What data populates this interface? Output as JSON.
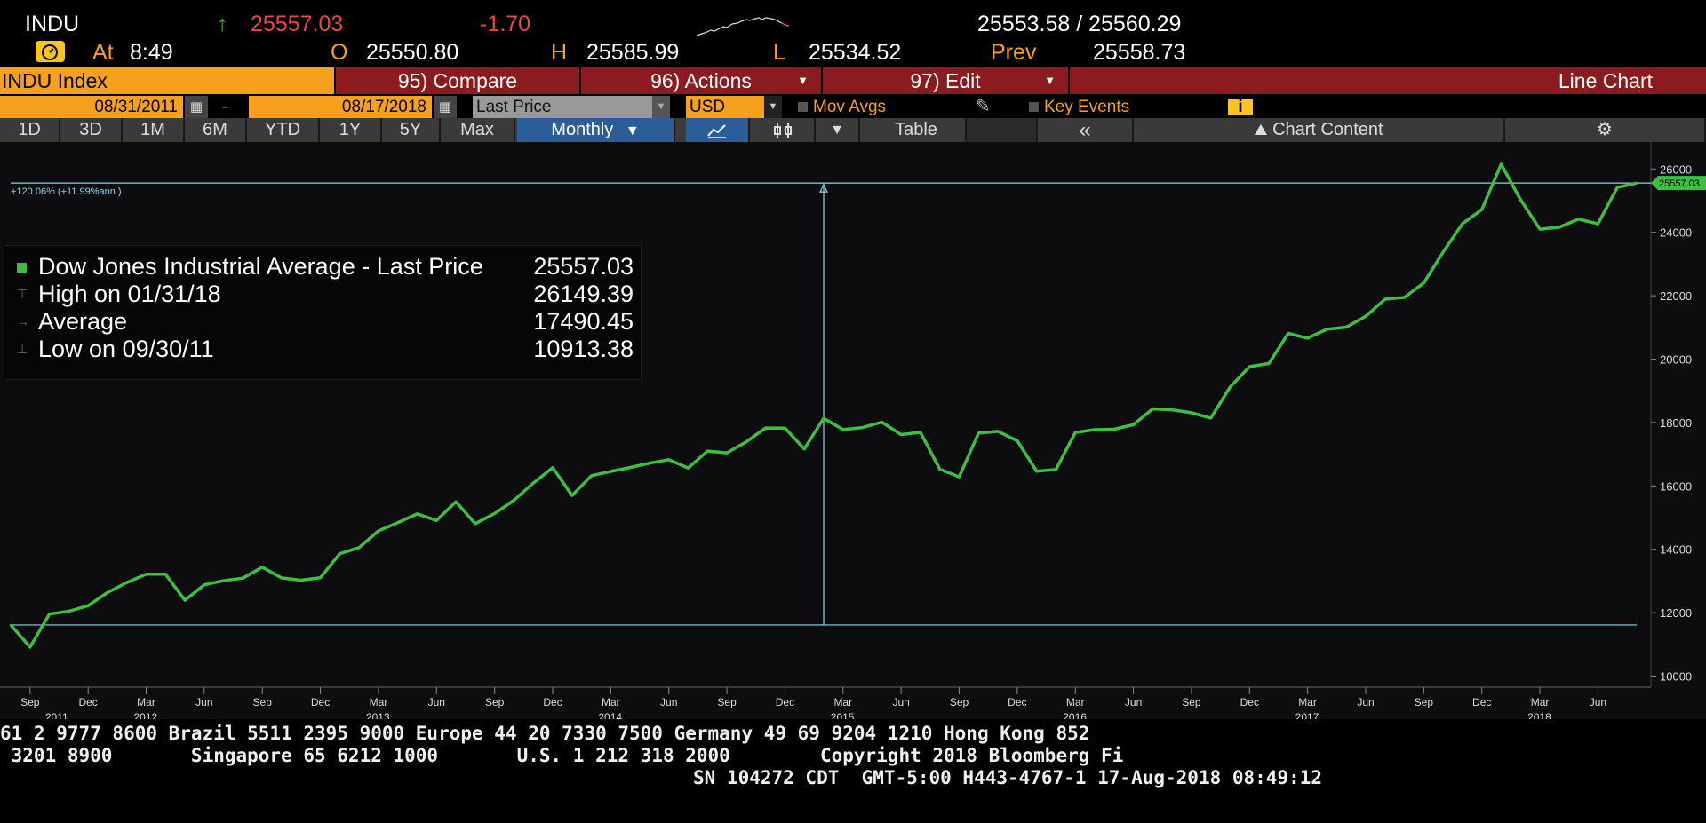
{
  "quote": {
    "ticker": "INDU",
    "arrow": "↑",
    "last": "25557.03",
    "change": "-1.70",
    "bid_ask": "25553.58 / 25560.29",
    "at_label": "At",
    "time": "8:49",
    "open_label": "O",
    "open": "25550.80",
    "high_label": "H",
    "high": "25585.99",
    "low_label": "L",
    "low": "25534.52",
    "prev_label": "Prev",
    "prev": "25558.73"
  },
  "menu": {
    "security": "INDU Index",
    "compare": "95) Compare",
    "actions": "96) Actions",
    "edit": "97) Edit",
    "chart_type": "Line Chart"
  },
  "controls": {
    "start_date": "08/31/2011",
    "dash": "-",
    "end_date": "08/17/2018",
    "field": "Last Price",
    "currency": "USD",
    "mov_avgs": "Mov Avgs",
    "key_events": "Key Events",
    "info": "i"
  },
  "periods": [
    "1D",
    "3D",
    "1M",
    "6M",
    "YTD",
    "1Y",
    "5Y",
    "Max"
  ],
  "frequency": "Monthly",
  "toolbar": {
    "table": "Table",
    "collapse": "«",
    "chart_content": "Chart Content",
    "settings": "⚙"
  },
  "legend": {
    "rows": [
      {
        "label": "Dow Jones Industrial Average - Last Price",
        "value": "25557.03"
      },
      {
        "label": "High on 01/31/18",
        "value": "26149.39"
      },
      {
        "label": "Average",
        "value": "17490.45"
      },
      {
        "label": "Low on 09/30/11",
        "value": "10913.38"
      }
    ]
  },
  "annotation": "+120.06% (+11.99%ann.)",
  "last_price_tag": "25557.03",
  "colors": {
    "line": "#3fbf3f",
    "reference": "#8fd6e6",
    "menu_red": "#8b1b1e",
    "orange": "#f7a01c",
    "down": "#e8474a",
    "up": "#3fbf3f"
  },
  "chart_data": {
    "type": "line",
    "series": [
      {
        "name": "Dow Jones Industrial Average - Last Price",
        "x": [
          "2011-08",
          "2011-09",
          "2011-10",
          "2011-11",
          "2011-12",
          "2012-01",
          "2012-02",
          "2012-03",
          "2012-04",
          "2012-05",
          "2012-06",
          "2012-07",
          "2012-08",
          "2012-09",
          "2012-10",
          "2012-11",
          "2012-12",
          "2013-01",
          "2013-02",
          "2013-03",
          "2013-04",
          "2013-05",
          "2013-06",
          "2013-07",
          "2013-08",
          "2013-09",
          "2013-10",
          "2013-11",
          "2013-12",
          "2014-01",
          "2014-02",
          "2014-03",
          "2014-04",
          "2014-05",
          "2014-06",
          "2014-07",
          "2014-08",
          "2014-09",
          "2014-10",
          "2014-11",
          "2014-12",
          "2015-01",
          "2015-02",
          "2015-03",
          "2015-04",
          "2015-05",
          "2015-06",
          "2015-07",
          "2015-08",
          "2015-09",
          "2015-10",
          "2015-11",
          "2015-12",
          "2016-01",
          "2016-02",
          "2016-03",
          "2016-04",
          "2016-05",
          "2016-06",
          "2016-07",
          "2016-08",
          "2016-09",
          "2016-10",
          "2016-11",
          "2016-12",
          "2017-01",
          "2017-02",
          "2017-03",
          "2017-04",
          "2017-05",
          "2017-06",
          "2017-07",
          "2017-08",
          "2017-09",
          "2017-10",
          "2017-11",
          "2017-12",
          "2018-01",
          "2018-02",
          "2018-03",
          "2018-04",
          "2018-05",
          "2018-06",
          "2018-07",
          "2018-08"
        ],
        "values": [
          11613,
          10913,
          11955,
          12046,
          12218,
          12633,
          12952,
          13212,
          13214,
          12393,
          12880,
          13009,
          13091,
          13437,
          13096,
          13026,
          13104,
          13861,
          14054,
          14579,
          14840,
          15116,
          14910,
          15500,
          14810,
          15130,
          15546,
          16086,
          16577,
          15699,
          16322,
          16458,
          16581,
          16717,
          16827,
          16563,
          17098,
          17043,
          17391,
          17828,
          17823,
          17165,
          18133,
          17776,
          17841,
          18011,
          17620,
          17690,
          16528,
          16285,
          17664,
          17720,
          17425,
          16466,
          16517,
          17685,
          17774,
          17787,
          17930,
          18432,
          18401,
          18308,
          18142,
          19124,
          19763,
          19864,
          20812,
          20663,
          20941,
          21009,
          21350,
          21891,
          21948,
          22405,
          23377,
          24272,
          24719,
          26149,
          25029,
          24103,
          24163,
          24416,
          24271,
          25415,
          25557
        ]
      }
    ],
    "x_ticks": [
      "Sep",
      "Dec",
      "Mar",
      "Jun",
      "Sep",
      "Dec",
      "Mar",
      "Jun",
      "Sep",
      "Dec",
      "Mar",
      "Jun",
      "Sep",
      "Dec",
      "Mar",
      "Jun",
      "Sep",
      "Dec",
      "Mar",
      "Jun",
      "Sep",
      "Dec",
      "Mar",
      "Jun",
      "Sep",
      "Dec",
      "Mar",
      "Jun"
    ],
    "x_years": [
      "2011",
      "2012",
      "2013",
      "2014",
      "2015",
      "2016",
      "2017",
      "2018"
    ],
    "y_ticks": [
      10000,
      12000,
      14000,
      16000,
      18000,
      20000,
      22000,
      24000,
      26000
    ],
    "ylim": [
      9650,
      26850
    ],
    "reference_lines": [
      25557.03,
      11613
    ],
    "grid": false,
    "legend_position": "top-left"
  },
  "footer": {
    "line1": "61 2 9777 8600 Brazil 5511 2395 9000 Europe 44 20 7330 7500 Germany 49 69 9204 1210 Hong Kong 852",
    "line2": " 3201 8900       Singapore 65 6212 1000       U.S. 1 212 318 2000        Copyright 2018 Bloomberg Fi",
    "line3": "SN 104272 CDT  GMT-5:00 H443-4767-1 17-Aug-2018 08:49:12"
  }
}
